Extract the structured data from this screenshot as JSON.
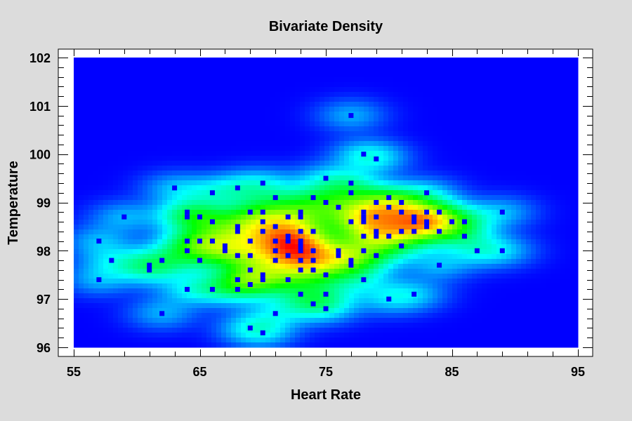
{
  "chart_data": {
    "type": "heatmap",
    "title": "Bivariate Density",
    "xlabel": "Heart Rate",
    "ylabel": "Temperature",
    "xlim": [
      55,
      95
    ],
    "ylim": [
      96,
      102
    ],
    "x_ticks": [
      55,
      65,
      75,
      85,
      95
    ],
    "y_ticks": [
      96,
      97,
      98,
      99,
      100,
      101,
      102
    ],
    "colormap": [
      "#0000ff",
      "#00ffff",
      "#00ff00",
      "#ffff00",
      "#ff0000"
    ],
    "point_color": "#0000ff",
    "frame_color": "#ffffff",
    "background_color": "#dcdcdc",
    "points": [
      [
        57,
        98.2
      ],
      [
        57,
        97.4
      ],
      [
        58,
        97.8
      ],
      [
        59,
        98.7
      ],
      [
        61,
        97.7
      ],
      [
        61,
        97.6
      ],
      [
        62,
        97.8
      ],
      [
        62,
        96.7
      ],
      [
        63,
        99.3
      ],
      [
        64,
        98.8
      ],
      [
        64,
        98.7
      ],
      [
        64,
        98.2
      ],
      [
        64,
        98.0
      ],
      [
        64,
        97.2
      ],
      [
        65,
        98.7
      ],
      [
        65,
        98.2
      ],
      [
        65,
        97.8
      ],
      [
        66,
        99.2
      ],
      [
        66,
        98.6
      ],
      [
        66,
        98.2
      ],
      [
        66,
        97.2
      ],
      [
        67,
        98.1
      ],
      [
        67,
        98.0
      ],
      [
        68,
        99.3
      ],
      [
        68,
        98.5
      ],
      [
        68,
        98.4
      ],
      [
        68,
        97.9
      ],
      [
        68,
        97.4
      ],
      [
        68,
        97.2
      ],
      [
        69,
        98.8
      ],
      [
        69,
        98.2
      ],
      [
        69,
        97.9
      ],
      [
        69,
        97.6
      ],
      [
        69,
        97.3
      ],
      [
        69,
        96.4
      ],
      [
        70,
        99.4
      ],
      [
        70,
        98.8
      ],
      [
        70,
        98.6
      ],
      [
        70,
        98.4
      ],
      [
        70,
        97.5
      ],
      [
        70,
        97.4
      ],
      [
        70,
        96.3
      ],
      [
        71,
        99.1
      ],
      [
        71,
        98.5
      ],
      [
        71,
        98.2
      ],
      [
        71,
        98.0
      ],
      [
        71,
        97.8
      ],
      [
        71,
        96.7
      ],
      [
        72,
        98.7
      ],
      [
        72,
        98.3
      ],
      [
        72,
        98.2
      ],
      [
        72,
        97.9
      ],
      [
        72,
        97.4
      ],
      [
        73,
        98.8
      ],
      [
        73,
        98.7
      ],
      [
        73,
        98.4
      ],
      [
        73,
        98.2
      ],
      [
        73,
        98.1
      ],
      [
        73,
        98.0
      ],
      [
        73,
        97.8
      ],
      [
        73,
        97.6
      ],
      [
        73,
        97.1
      ],
      [
        74,
        99.1
      ],
      [
        74,
        98.4
      ],
      [
        74,
        98.0
      ],
      [
        74,
        97.8
      ],
      [
        74,
        97.6
      ],
      [
        74,
        96.9
      ],
      [
        75,
        99.5
      ],
      [
        75,
        99.0
      ],
      [
        75,
        97.5
      ],
      [
        75,
        97.1
      ],
      [
        75,
        96.8
      ],
      [
        76,
        98.9
      ],
      [
        76,
        98.0
      ],
      [
        76,
        97.9
      ],
      [
        77,
        100.8
      ],
      [
        77,
        99.4
      ],
      [
        77,
        99.2
      ],
      [
        77,
        98.6
      ],
      [
        77,
        97.8
      ],
      [
        77,
        97.7
      ],
      [
        78,
        100.0
      ],
      [
        78,
        98.8
      ],
      [
        78,
        98.7
      ],
      [
        78,
        98.6
      ],
      [
        78,
        98.3
      ],
      [
        78,
        98.0
      ],
      [
        78,
        97.4
      ],
      [
        79,
        99.9
      ],
      [
        79,
        99.0
      ],
      [
        79,
        98.7
      ],
      [
        79,
        98.4
      ],
      [
        79,
        98.3
      ],
      [
        79,
        97.9
      ],
      [
        80,
        99.1
      ],
      [
        80,
        98.9
      ],
      [
        80,
        98.3
      ],
      [
        80,
        97.0
      ],
      [
        81,
        99.0
      ],
      [
        81,
        98.8
      ],
      [
        81,
        98.4
      ],
      [
        81,
        98.1
      ],
      [
        82,
        98.7
      ],
      [
        82,
        98.6
      ],
      [
        82,
        98.4
      ],
      [
        82,
        97.1
      ],
      [
        83,
        99.2
      ],
      [
        83,
        98.8
      ],
      [
        83,
        98.6
      ],
      [
        83,
        98.5
      ],
      [
        84,
        98.8
      ],
      [
        84,
        98.4
      ],
      [
        84,
        97.7
      ],
      [
        85,
        98.6
      ],
      [
        86,
        98.6
      ],
      [
        86,
        98.3
      ],
      [
        87,
        98.0
      ],
      [
        89,
        98.8
      ],
      [
        89,
        98.0
      ]
    ]
  }
}
